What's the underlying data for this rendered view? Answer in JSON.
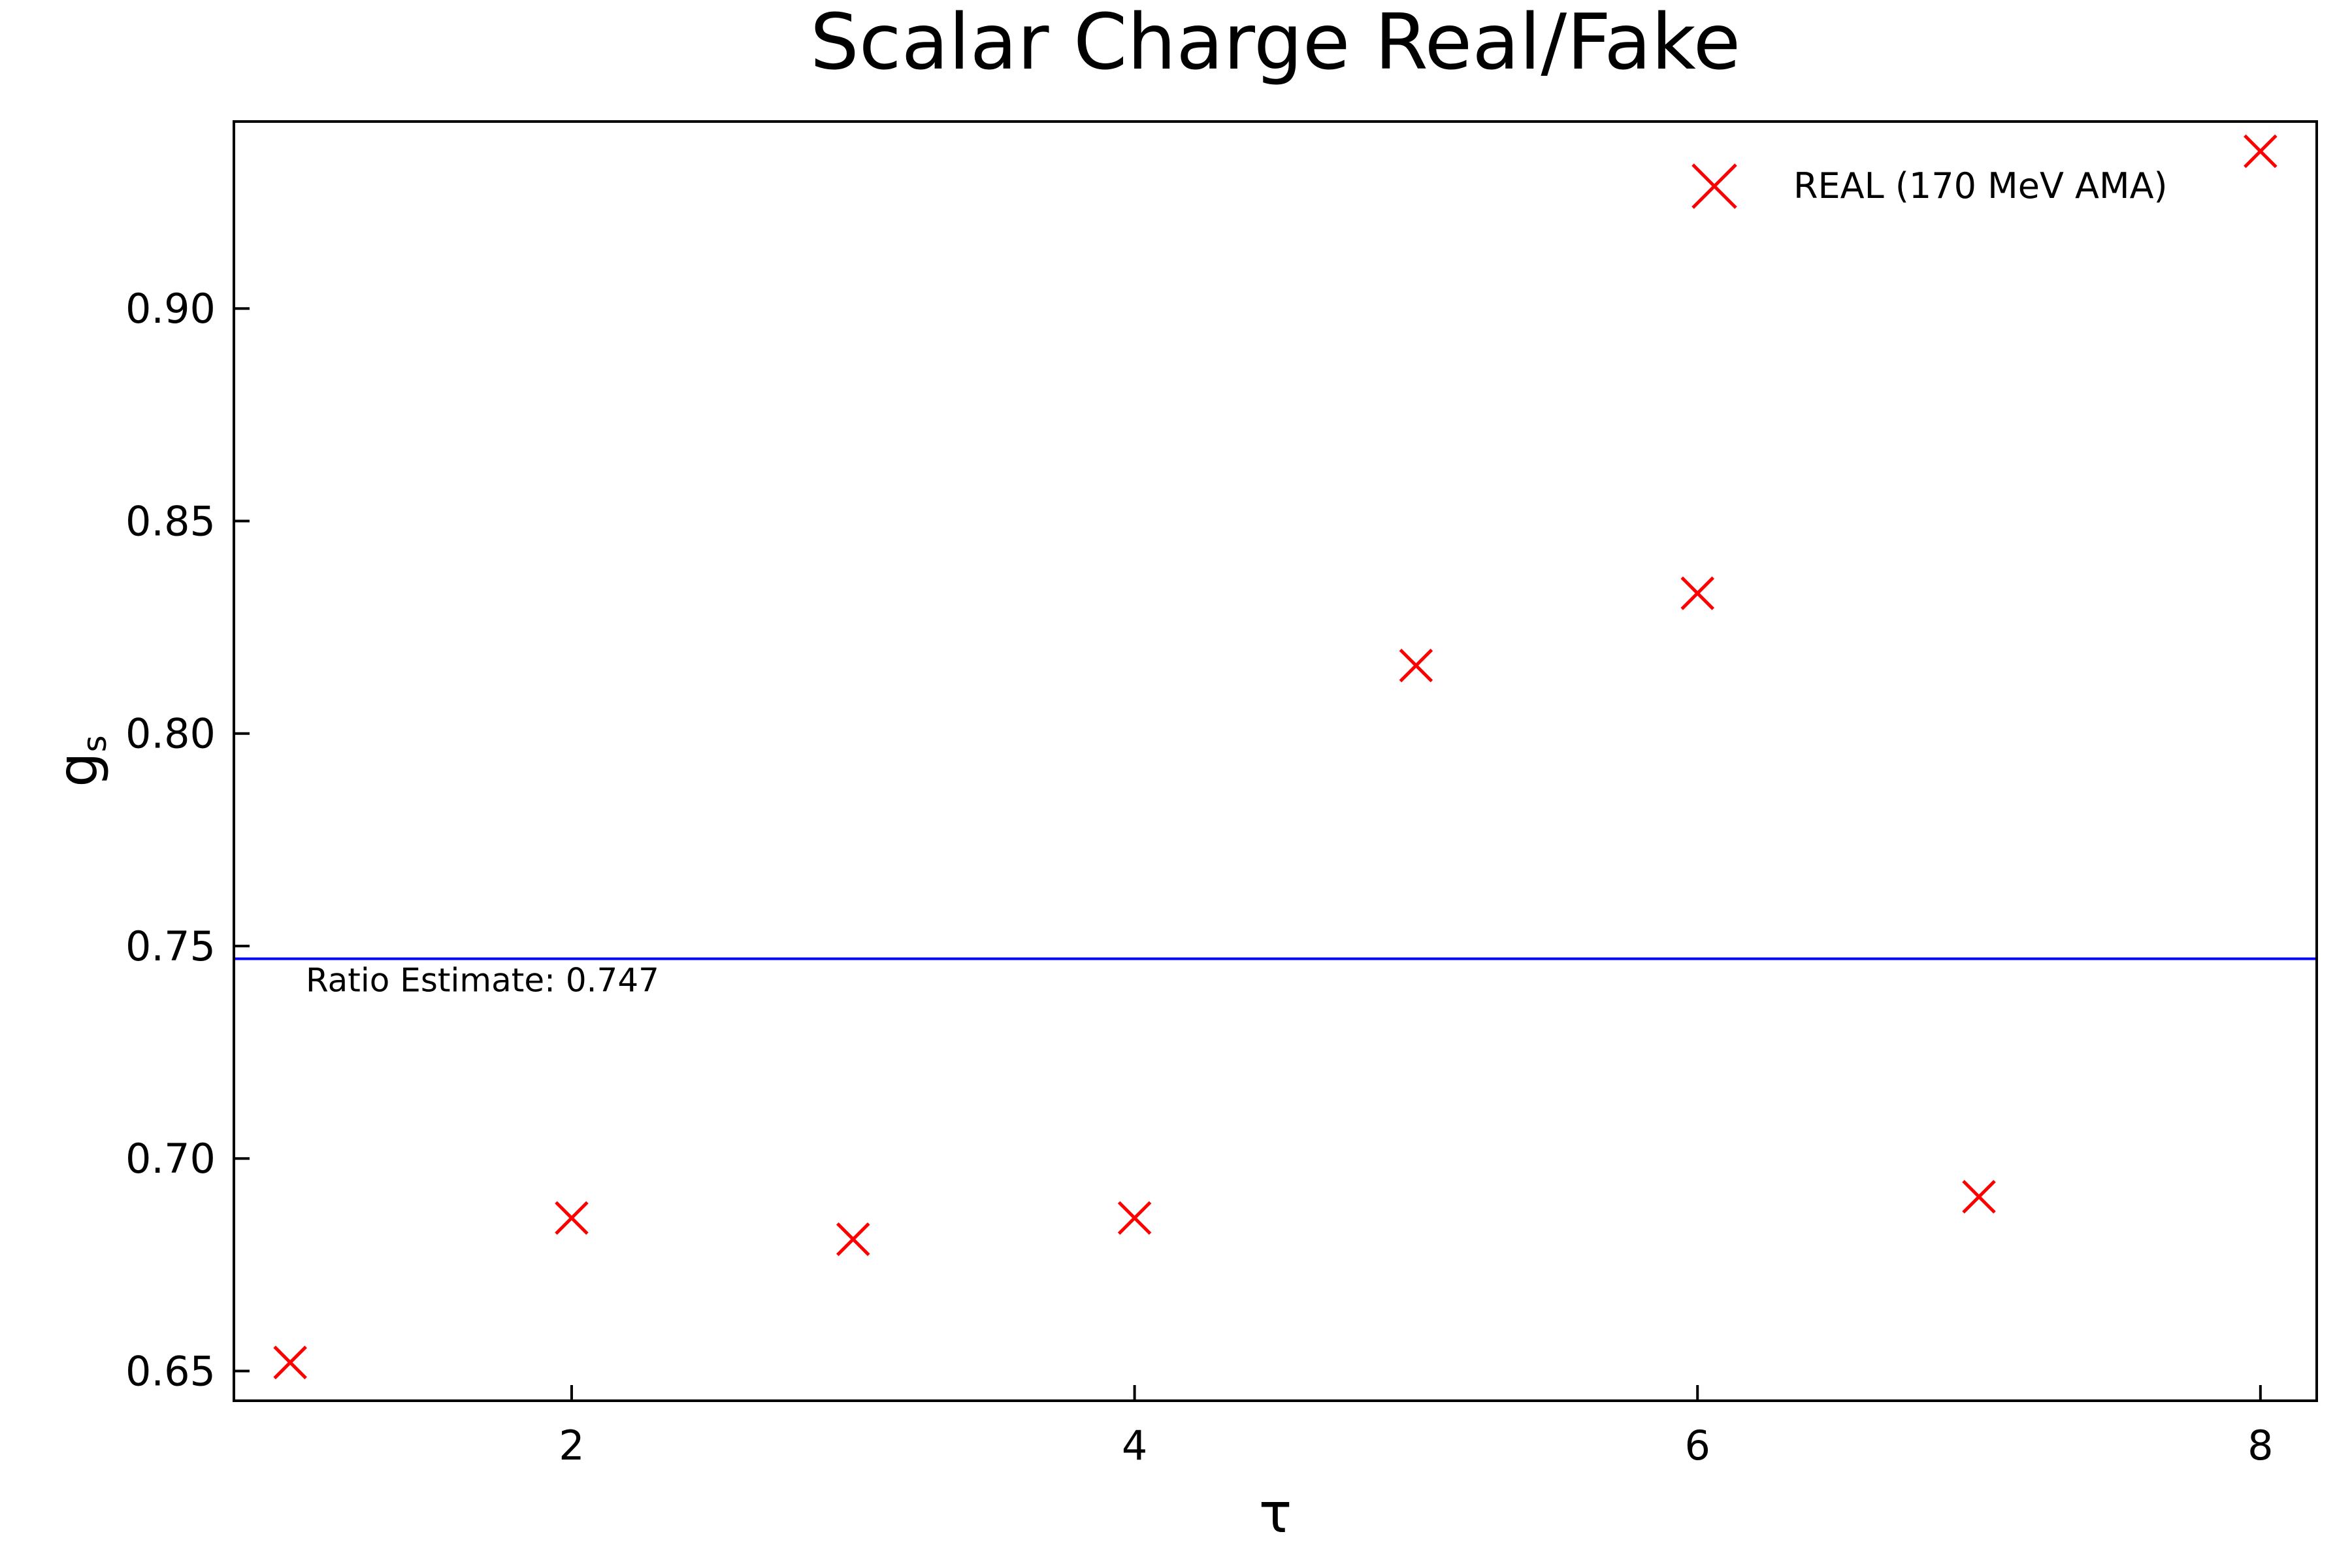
{
  "chart_data": {
    "type": "scatter",
    "title": "Scalar Charge Real/Fake",
    "xlabel": "τ",
    "ylabel": "g",
    "ylabel_subscript": "s",
    "xlim": [
      0.8,
      8.2
    ],
    "ylim": [
      0.643,
      0.944
    ],
    "xticks": [
      2,
      4,
      6,
      8
    ],
    "xtick_labels": [
      "2",
      "4",
      "6",
      "8"
    ],
    "yticks": [
      0.65,
      0.7,
      0.75,
      0.8,
      0.85,
      0.9
    ],
    "ytick_labels": [
      "0.65",
      "0.70",
      "0.75",
      "0.80",
      "0.85",
      "0.90"
    ],
    "grid": false,
    "legend_position": "top-right",
    "series": [
      {
        "name": "REAL (170 MeV AMA)",
        "marker": "x",
        "color": "#ff0000",
        "x": [
          1,
          2,
          3,
          4,
          5,
          6,
          7,
          8
        ],
        "y": [
          0.652,
          0.686,
          0.681,
          0.686,
          0.816,
          0.833,
          0.691,
          0.937
        ]
      }
    ],
    "reference_line": {
      "y": 0.747,
      "color": "#0000ff",
      "label": "Ratio Estimate: 0.747"
    }
  }
}
